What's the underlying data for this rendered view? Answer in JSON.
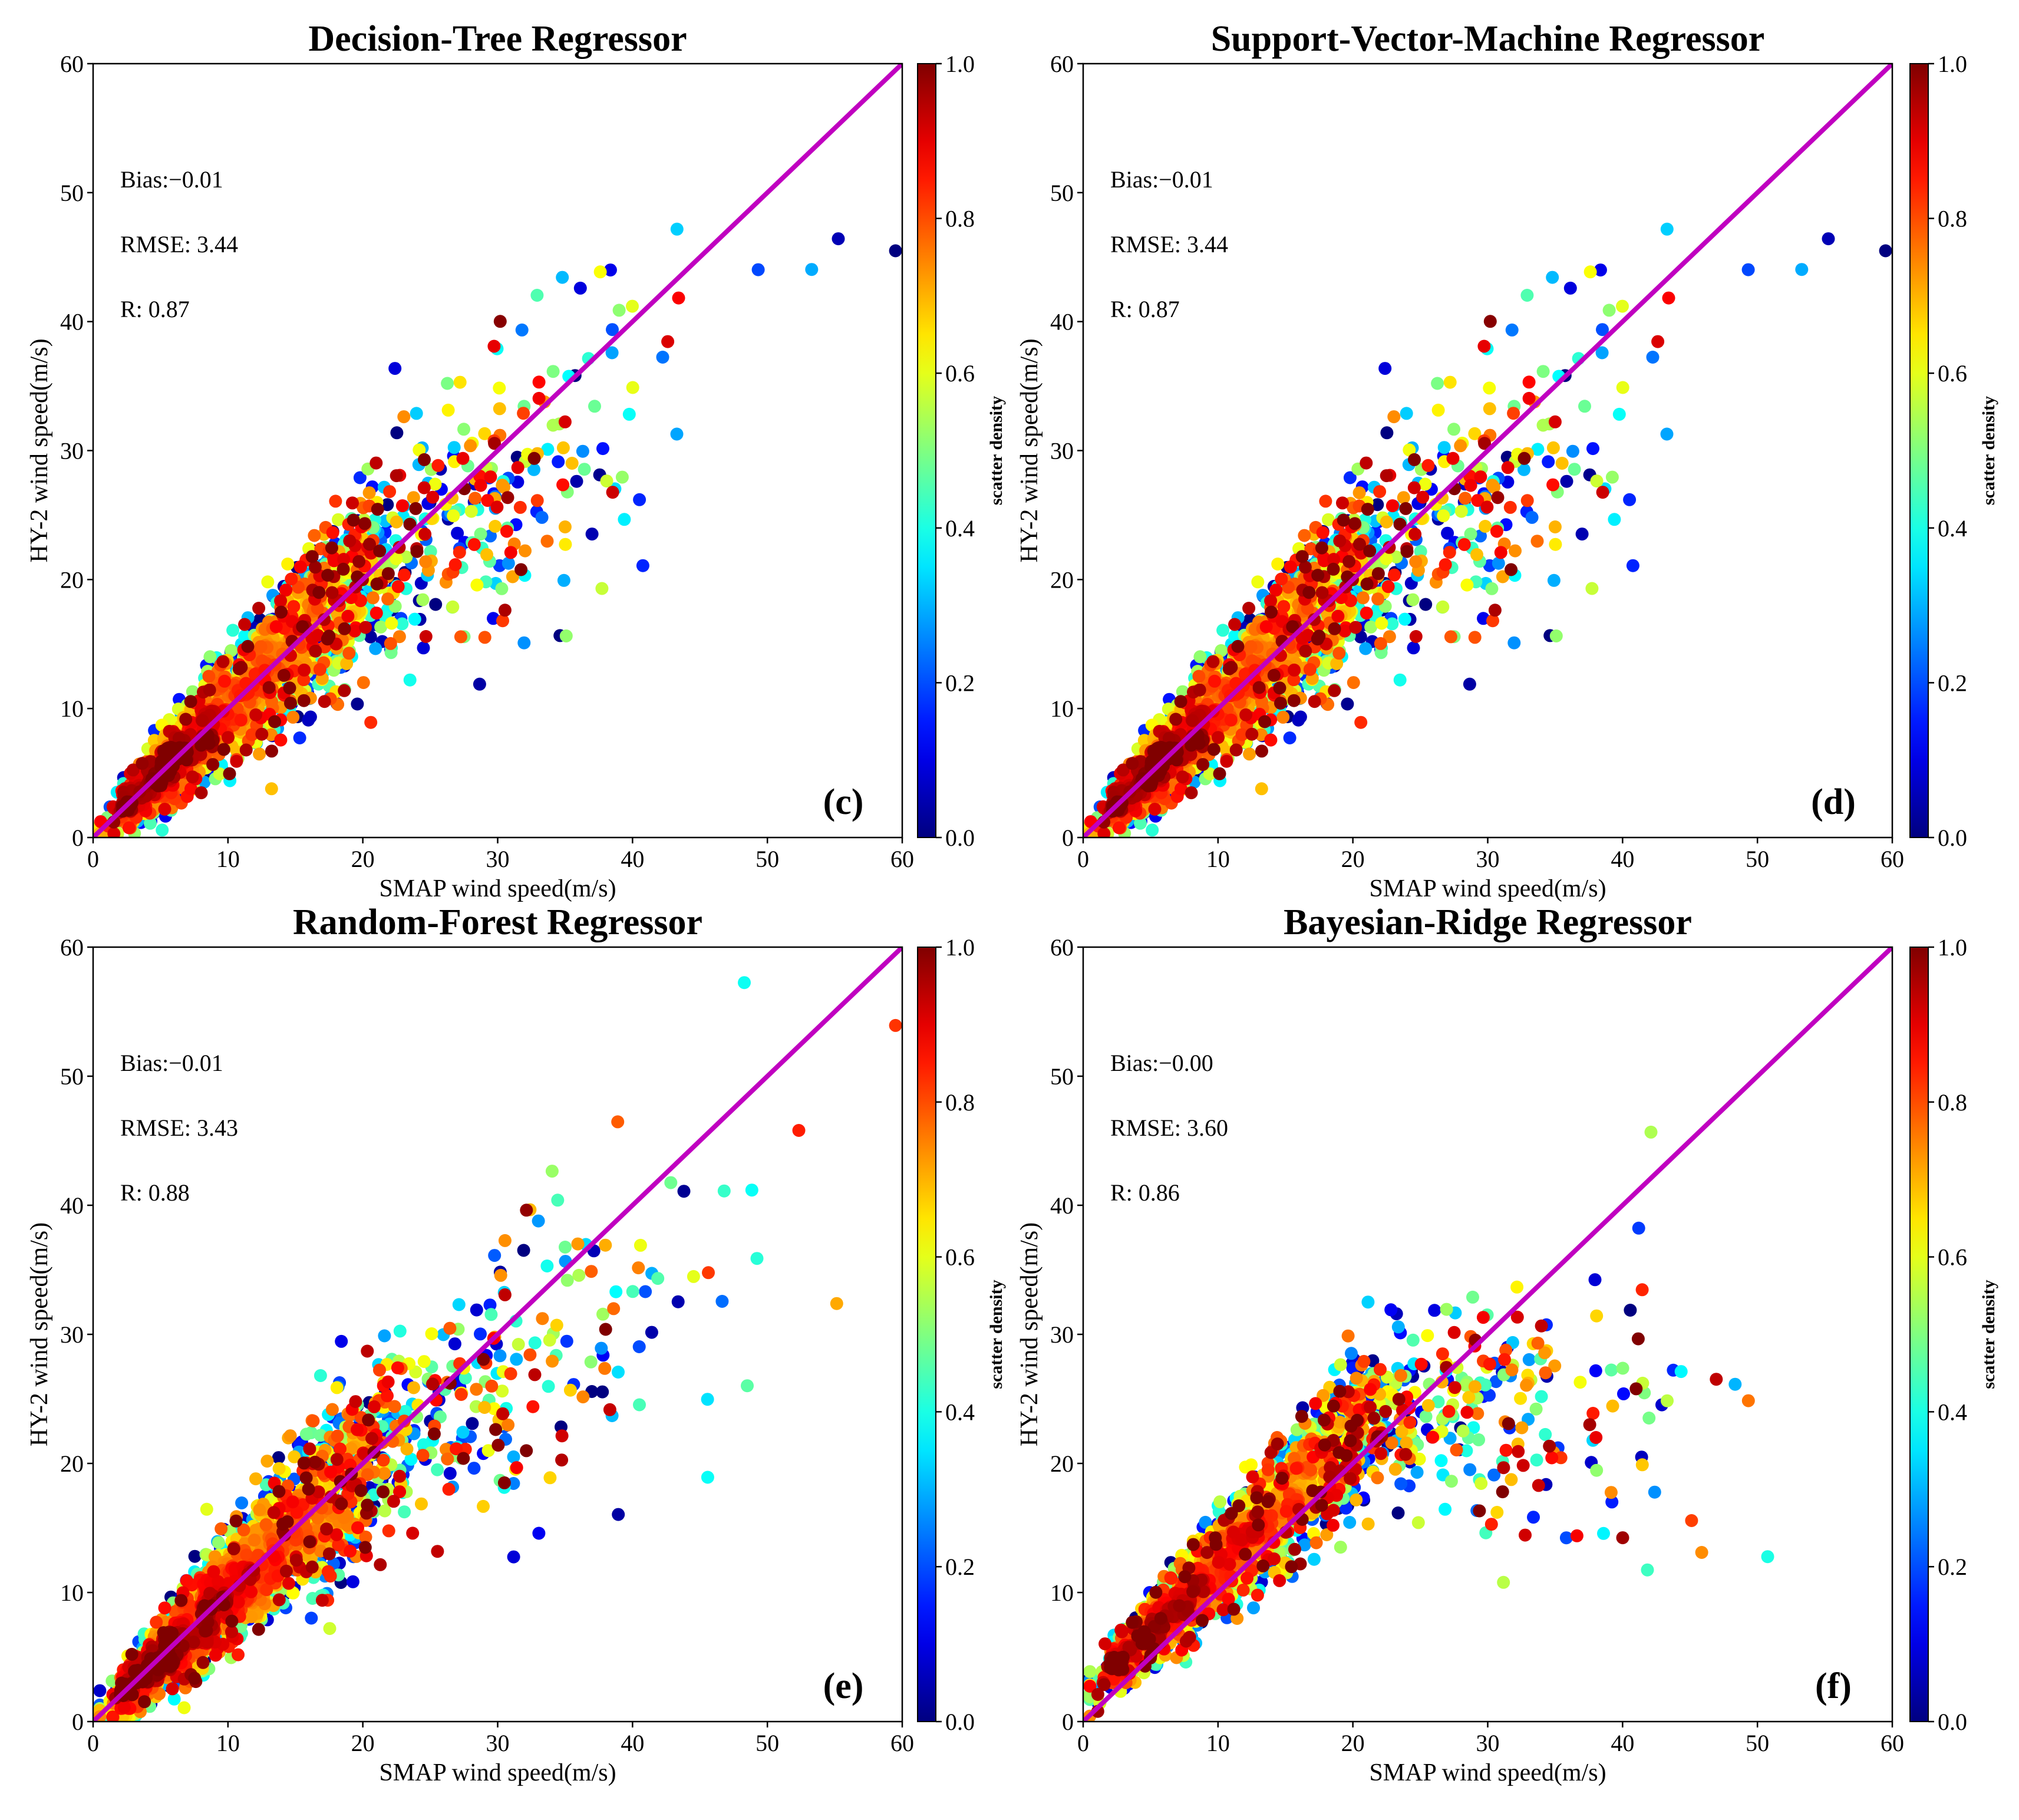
{
  "chart_data": [
    {
      "type": "scatter",
      "title": "Decision-Tree Regressor",
      "panel_label": "(c)",
      "xlabel": "SMAP wind speed(m/s)",
      "ylabel": "HY-2 wind speed(m/s)",
      "xlim": [
        0,
        60
      ],
      "ylim": [
        0,
        60
      ],
      "xticks": [
        "0",
        "10",
        "20",
        "30",
        "40",
        "50",
        "60"
      ],
      "yticks": [
        "0",
        "10",
        "20",
        "30",
        "40",
        "50",
        "60"
      ],
      "stats": {
        "bias": "Bias:−0.01",
        "rmse": "RMSE: 3.44",
        "r": "R: 0.87"
      },
      "reference_line": {
        "x": [
          0,
          60
        ],
        "y": [
          0,
          60
        ],
        "color": "#c000c0"
      },
      "colorbar": {
        "label": "scatter density",
        "range": [
          0,
          1
        ],
        "ticks": [
          "0.0",
          "0.2",
          "0.4",
          "0.6",
          "0.8",
          "1.0"
        ],
        "colormap": "jet"
      },
      "point_cloud": {
        "n": 2600,
        "seed": 11,
        "saturation": 0,
        "spread": 0.2
      }
    },
    {
      "type": "scatter",
      "title": "Support-Vector-Machine Regressor",
      "panel_label": "(d)",
      "xlabel": "SMAP wind speed(m/s)",
      "ylabel": "HY-2 wind speed(m/s)",
      "xlim": [
        0,
        60
      ],
      "ylim": [
        0,
        60
      ],
      "xticks": [
        "0",
        "10",
        "20",
        "30",
        "40",
        "50",
        "60"
      ],
      "yticks": [
        "0",
        "10",
        "20",
        "30",
        "40",
        "50",
        "60"
      ],
      "stats": {
        "bias": "Bias:−0.01",
        "rmse": "RMSE: 3.44",
        "r": "R: 0.87"
      },
      "reference_line": {
        "x": [
          0,
          60
        ],
        "y": [
          0,
          60
        ],
        "color": "#c000c0"
      },
      "colorbar": {
        "label": "scatter density",
        "range": [
          0,
          1
        ],
        "ticks": [
          "0.0",
          "0.2",
          "0.4",
          "0.6",
          "0.8",
          "1.0"
        ],
        "colormap": "jet"
      },
      "point_cloud": {
        "n": 2600,
        "seed": 11,
        "saturation": 0,
        "spread": 0.2
      }
    },
    {
      "type": "scatter",
      "title": "Random-Forest Regressor",
      "panel_label": "(e)",
      "xlabel": "SMAP wind speed(m/s)",
      "ylabel": "HY-2 wind speed(m/s)",
      "xlim": [
        0,
        60
      ],
      "ylim": [
        0,
        60
      ],
      "xticks": [
        "0",
        "10",
        "20",
        "30",
        "40",
        "50",
        "60"
      ],
      "yticks": [
        "0",
        "10",
        "20",
        "30",
        "40",
        "50",
        "60"
      ],
      "stats": {
        "bias": "Bias:−0.01",
        "rmse": "RMSE: 3.43",
        "r": "R: 0.88"
      },
      "reference_line": {
        "x": [
          0,
          60
        ],
        "y": [
          0,
          60
        ],
        "color": "#c000c0"
      },
      "colorbar": {
        "label": "scatter density",
        "range": [
          0,
          1
        ],
        "ticks": [
          "0.0",
          "0.2",
          "0.4",
          "0.6",
          "0.8",
          "1.0"
        ],
        "colormap": "jet"
      },
      "point_cloud": {
        "n": 2600,
        "seed": 23,
        "saturation": 0,
        "spread": 0.19
      }
    },
    {
      "type": "scatter",
      "title": "Bayesian-Ridge Regressor",
      "panel_label": "(f)",
      "xlabel": "SMAP wind speed(m/s)",
      "ylabel": "HY-2 wind speed(m/s)",
      "xlim": [
        0,
        60
      ],
      "ylim": [
        0,
        60
      ],
      "xticks": [
        "0",
        "10",
        "20",
        "30",
        "40",
        "50",
        "60"
      ],
      "yticks": [
        "0",
        "10",
        "20",
        "30",
        "40",
        "50",
        "60"
      ],
      "stats": {
        "bias": "Bias:−0.00",
        "rmse": "RMSE: 3.60",
        "r": "R: 0.86"
      },
      "reference_line": {
        "x": [
          0,
          60
        ],
        "y": [
          0,
          60
        ],
        "color": "#c000c0"
      },
      "colorbar": {
        "label": "scatter density",
        "range": [
          0,
          1
        ],
        "ticks": [
          "0.0",
          "0.2",
          "0.4",
          "0.6",
          "0.8",
          "1.0"
        ],
        "colormap": "jet"
      },
      "point_cloud": {
        "n": 2600,
        "seed": 37,
        "saturation": 1,
        "spread": 0.15
      }
    }
  ]
}
